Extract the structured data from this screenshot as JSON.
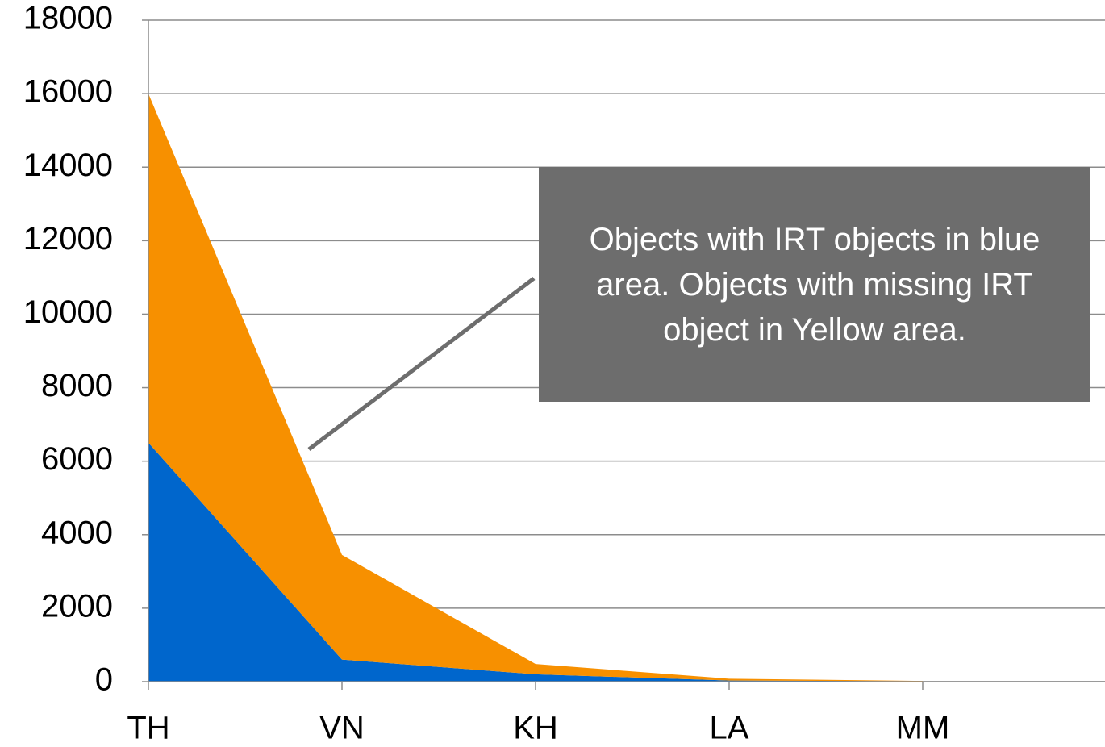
{
  "chart_data": {
    "type": "stacked_area",
    "categories": [
      "TH",
      "VN",
      "KH",
      "LA",
      "MM"
    ],
    "series": [
      {
        "name": "Objects with IRT objects",
        "color": "#0066cc",
        "values": [
          6500,
          600,
          200,
          30,
          10
        ]
      },
      {
        "name": "Objects with missing IRT object",
        "color": "#f79000",
        "values": [
          9500,
          2850,
          280,
          50,
          10
        ]
      }
    ],
    "ylim": [
      0,
      18000
    ],
    "yticks": [
      0,
      2000,
      4000,
      6000,
      8000,
      10000,
      12000,
      14000,
      16000,
      18000
    ],
    "grid": true,
    "annotation": "Objects with IRT objects in blue area. Objects with missing IRT object in Yellow area."
  }
}
